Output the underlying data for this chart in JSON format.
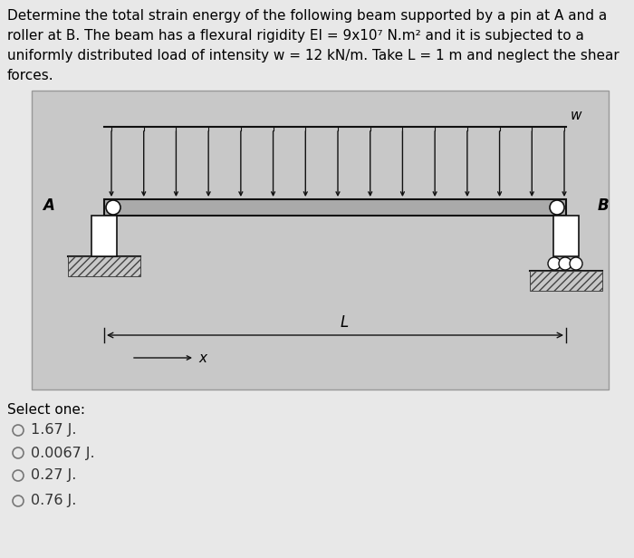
{
  "title_text": "Determine the total strain energy of the following beam supported by a pin at A and a\nroller at B. The beam has a flexural rigidity EI = 9x10⁷ N.m² and it is subjected to a\nuniformly distributed load of intensity w = 12 kN/m. Take L = 1 m and neglect the shear\nforces.",
  "select_one_label": "Select one:",
  "options": [
    "1.67 J.",
    "0.0067 J.",
    "0.27 J.",
    "0.76 J."
  ],
  "page_bg": "#e8e8e8",
  "diagram_bg": "#c8c8c8",
  "beam_color": "#111111",
  "arrow_color": "#111111",
  "hatch_color": "#444444",
  "title_fontsize": 11.0,
  "option_fontsize": 11.5,
  "beam_fill": "#b0b0b0",
  "white": "#ffffff"
}
